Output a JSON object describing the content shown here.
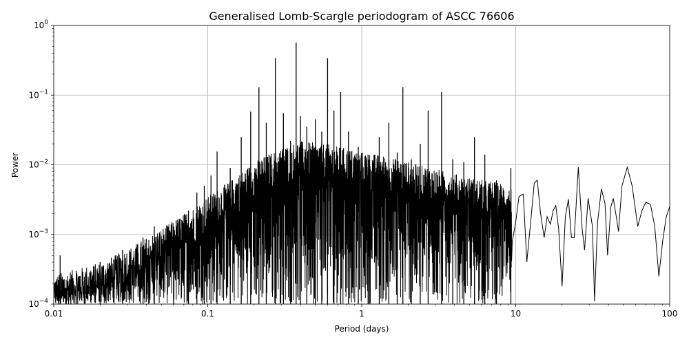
{
  "chart_data": {
    "type": "line",
    "title": "Generalised Lomb-Scargle periodogram of ASCC 76606",
    "xlabel": "Period (days)",
    "ylabel": "Power",
    "xscale": "log",
    "yscale": "log",
    "xlim": [
      0.01,
      100
    ],
    "ylim": [
      0.0001,
      1
    ],
    "grid": true,
    "x_ticks": [
      {
        "value": 0.01,
        "label": "0.01"
      },
      {
        "value": 0.1,
        "label": "0.1"
      },
      {
        "value": 1,
        "label": "1"
      },
      {
        "value": 10,
        "label": "10"
      },
      {
        "value": 100,
        "label": "100"
      }
    ],
    "y_ticks": [
      {
        "value": 0.0001,
        "base": "10",
        "exp": "−4"
      },
      {
        "value": 0.001,
        "base": "10",
        "exp": "−3"
      },
      {
        "value": 0.01,
        "base": "10",
        "exp": "−2"
      },
      {
        "value": 0.1,
        "base": "10",
        "exp": "−1"
      },
      {
        "value": 1,
        "base": "10",
        "exp": "0"
      }
    ],
    "line_color": "#000000",
    "noise_floor": [
      [
        0.01,
        0.00012
      ],
      [
        0.02,
        0.00018
      ],
      [
        0.03,
        0.00028
      ],
      [
        0.05,
        0.00055
      ],
      [
        0.08,
        0.0011
      ],
      [
        0.1,
        0.0016
      ],
      [
        0.15,
        0.003
      ],
      [
        0.2,
        0.005
      ],
      [
        0.3,
        0.008
      ],
      [
        0.4,
        0.01
      ],
      [
        0.6,
        0.009
      ],
      [
        1.0,
        0.007
      ],
      [
        1.5,
        0.006
      ],
      [
        2.0,
        0.005
      ],
      [
        3.0,
        0.004
      ],
      [
        5.0,
        0.003
      ],
      [
        8.0,
        0.0025
      ],
      [
        10.0,
        0.002
      ]
    ],
    "peaks": [
      [
        0.011,
        0.0005
      ],
      [
        0.014,
        0.0003
      ],
      [
        0.02,
        0.0004
      ],
      [
        0.028,
        0.0006
      ],
      [
        0.038,
        0.0009
      ],
      [
        0.045,
        0.0013
      ],
      [
        0.06,
        0.0012
      ],
      [
        0.075,
        0.0022
      ],
      [
        0.085,
        0.004
      ],
      [
        0.095,
        0.005
      ],
      [
        0.105,
        0.007
      ],
      [
        0.115,
        0.0155
      ],
      [
        0.14,
        0.009
      ],
      [
        0.165,
        0.025
      ],
      [
        0.19,
        0.058
      ],
      [
        0.215,
        0.13
      ],
      [
        0.24,
        0.04
      ],
      [
        0.275,
        0.34
      ],
      [
        0.31,
        0.055
      ],
      [
        0.345,
        0.022
      ],
      [
        0.375,
        0.57
      ],
      [
        0.4,
        0.05
      ],
      [
        0.44,
        0.035
      ],
      [
        0.5,
        0.045
      ],
      [
        0.55,
        0.03
      ],
      [
        0.6,
        0.34
      ],
      [
        0.66,
        0.06
      ],
      [
        0.73,
        0.11
      ],
      [
        0.82,
        0.03
      ],
      [
        0.95,
        0.018
      ],
      [
        1.1,
        0.014
      ],
      [
        1.3,
        0.025
      ],
      [
        1.5,
        0.04
      ],
      [
        1.7,
        0.015
      ],
      [
        1.85,
        0.13
      ],
      [
        2.1,
        0.012
      ],
      [
        2.4,
        0.02
      ],
      [
        2.7,
        0.06
      ],
      [
        3.3,
        0.11
      ],
      [
        3.9,
        0.012
      ],
      [
        4.6,
        0.011
      ],
      [
        5.4,
        0.025
      ],
      [
        6.3,
        0.014
      ],
      [
        7.5,
        0.006
      ],
      [
        9.3,
        0.009
      ]
    ],
    "tail": [
      [
        9.5,
        0.0008
      ],
      [
        10.0,
        0.0015
      ],
      [
        10.5,
        0.0035
      ],
      [
        11.2,
        0.0038
      ],
      [
        11.8,
        0.0004
      ],
      [
        12.5,
        0.0015
      ],
      [
        13.2,
        0.0055
      ],
      [
        13.8,
        0.006
      ],
      [
        14.5,
        0.002
      ],
      [
        15.3,
        0.0009
      ],
      [
        16.0,
        0.0018
      ],
      [
        16.8,
        0.0014
      ],
      [
        17.5,
        0.0022
      ],
      [
        18.2,
        0.0026
      ],
      [
        19.0,
        0.0012
      ],
      [
        20.0,
        0.00018
      ],
      [
        21.0,
        0.0018
      ],
      [
        22.0,
        0.0032
      ],
      [
        23.0,
        0.0009
      ],
      [
        24.0,
        0.0009
      ],
      [
        25.5,
        0.0092
      ],
      [
        27.0,
        0.0012
      ],
      [
        28.0,
        0.0006
      ],
      [
        29.5,
        0.0033
      ],
      [
        31.5,
        0.0013
      ],
      [
        32.5,
        0.00011
      ],
      [
        34.0,
        0.0015
      ],
      [
        36.0,
        0.0045
      ],
      [
        38.0,
        0.0028
      ],
      [
        39.5,
        0.0005
      ],
      [
        41.5,
        0.0025
      ],
      [
        43.0,
        0.0033
      ],
      [
        45.0,
        0.0018
      ],
      [
        46.5,
        0.0011
      ],
      [
        49.0,
        0.005
      ],
      [
        53.0,
        0.0092
      ],
      [
        57.0,
        0.005
      ],
      [
        62.0,
        0.0013
      ],
      [
        66.0,
        0.0022
      ],
      [
        70.0,
        0.0029
      ],
      [
        75.0,
        0.0027
      ],
      [
        80.0,
        0.0013
      ],
      [
        85.0,
        0.00025
      ],
      [
        90.0,
        0.0008
      ],
      [
        95.0,
        0.0018
      ],
      [
        100.0,
        0.0025
      ]
    ]
  }
}
